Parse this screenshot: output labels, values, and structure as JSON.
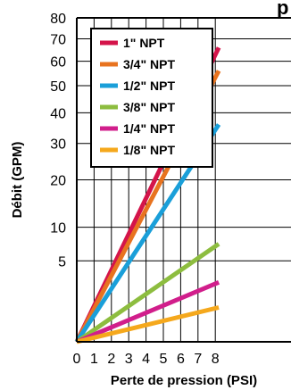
{
  "title_fragment": "p",
  "chart_data": {
    "type": "line",
    "xlabel": "Perte de pression (PSI)",
    "ylabel": "Débit (GPM)",
    "xlim": [
      0,
      8.2
    ],
    "ylim": [
      0,
      80
    ],
    "x_ticks": [
      0,
      1,
      2,
      3,
      4,
      5,
      6,
      7,
      8
    ],
    "y_ticks": [
      5,
      10,
      20,
      30,
      40,
      50,
      60,
      70,
      80
    ],
    "y_scale": "square-root",
    "grid": true,
    "legend_position": "top-left",
    "series": [
      {
        "name": "1\" NPT",
        "color": "#d4144a",
        "x": [
          0,
          8.2
        ],
        "y": [
          0,
          66
        ]
      },
      {
        "name": "3/4\" NPT",
        "color": "#e8731f",
        "x": [
          0,
          8.2
        ],
        "y": [
          0,
          56
        ]
      },
      {
        "name": "1/2\" NPT",
        "color": "#1a9fd9",
        "x": [
          0,
          8.2
        ],
        "y": [
          0,
          36
        ]
      },
      {
        "name": "3/8\" NPT",
        "color": "#8dbd3f",
        "x": [
          0,
          8.2
        ],
        "y": [
          0,
          7.3
        ]
      },
      {
        "name": "1/4\" NPT",
        "color": "#d11e8b",
        "x": [
          0,
          8.2
        ],
        "y": [
          0,
          2.7
        ]
      },
      {
        "name": "1/8\" NPT",
        "color": "#f5a81c",
        "x": [
          0,
          8.2
        ],
        "y": [
          0,
          0.9
        ]
      }
    ]
  }
}
